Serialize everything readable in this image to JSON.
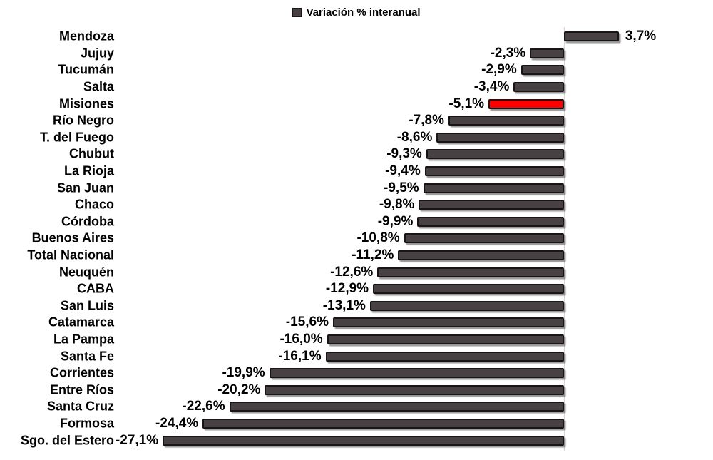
{
  "chart_data": {
    "type": "bar",
    "orientation": "horizontal",
    "title": "",
    "legend": "Variación % interanual",
    "legend_position": "top-center",
    "grid": false,
    "xlim": [
      -27.1,
      3.7
    ],
    "baseline_value": 0,
    "categories": [
      "Mendoza",
      "Jujuy",
      "Tucumán",
      "Salta",
      "Misiones",
      "Río Negro",
      "T. del Fuego",
      "Chubut",
      "La Rioja",
      "San Juan",
      "Chaco",
      "Córdoba",
      "Buenos Aires",
      "Total Nacional",
      "Neuquén",
      "CABA",
      "San Luis",
      "Catamarca",
      "La Pampa",
      "Santa Fe",
      "Corrientes",
      "Entre Ríos",
      "Santa Cruz",
      "Formosa",
      "Sgo. del Estero"
    ],
    "values": [
      3.7,
      -2.3,
      -2.9,
      -3.4,
      -5.1,
      -7.8,
      -8.6,
      -9.3,
      -9.4,
      -9.5,
      -9.8,
      -9.9,
      -10.8,
      -11.2,
      -12.6,
      -12.9,
      -13.1,
      -15.6,
      -16.0,
      -16.1,
      -19.9,
      -20.2,
      -22.6,
      -24.4,
      -27.1
    ],
    "value_labels": [
      "3,7%",
      "-2,3%",
      "-2,9%",
      "-3,4%",
      "-5,1%",
      "-7,8%",
      "-8,6%",
      "-9,3%",
      "-9,4%",
      "-9,5%",
      "-9,8%",
      "-9,9%",
      "-10,8%",
      "-11,2%",
      "-12,6%",
      "-12,9%",
      "-13,1%",
      "-15,6%",
      "-16,0%",
      "-16,1%",
      "-19,9%",
      "-20,2%",
      "-22,6%",
      "-24,4%",
      "-27,1%"
    ],
    "highlight_category": "Misiones",
    "colors": {
      "bar": "#474144",
      "bar_border": "#1a1416",
      "highlight": "#FF0000",
      "baseline": "#d6d6d6",
      "text": "#000000"
    }
  }
}
